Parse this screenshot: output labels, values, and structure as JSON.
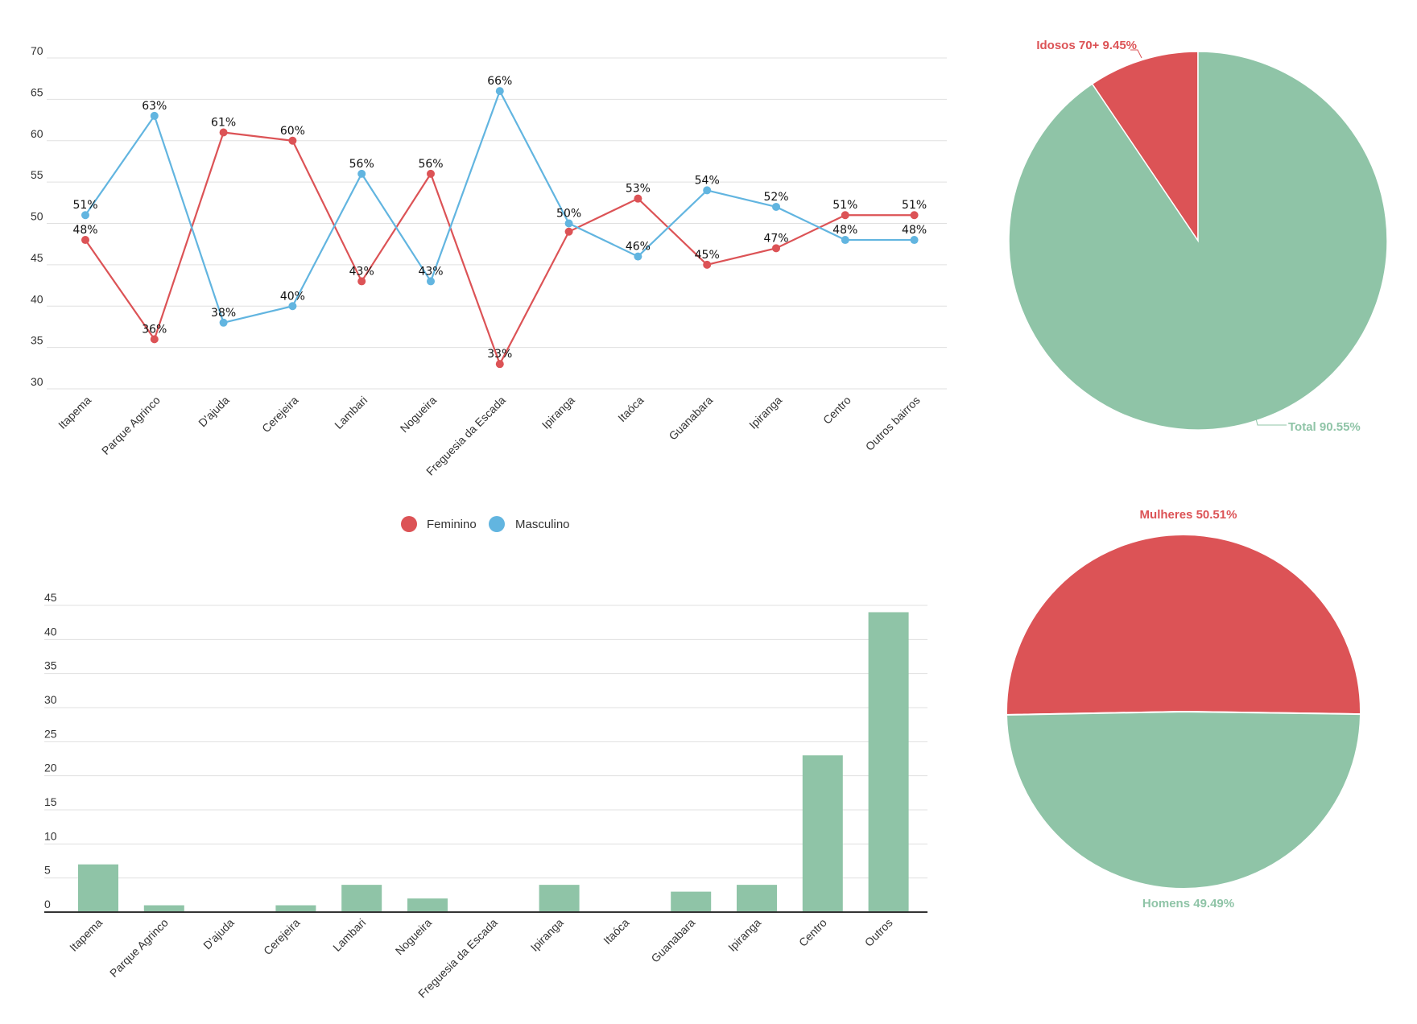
{
  "chart_data": [
    {
      "type": "line",
      "categories": [
        "Itapema",
        "Parque Agrinco",
        "D'ajuda",
        "Cerejeira",
        "Lambari",
        "Nogueira",
        "Freguesia da Escada",
        "Ipiranga",
        "Itaóca",
        "Guanabara",
        "Ipiranga",
        "Centro",
        "Outros bairros"
      ],
      "series": [
        {
          "name": "Feminino",
          "color": "#dc5356",
          "values": [
            48,
            36,
            61,
            60,
            43,
            56,
            33,
            49,
            53,
            45,
            47,
            51,
            51
          ],
          "labels": [
            "48%",
            "36%",
            "61%",
            "60%",
            "43%",
            "56%",
            "33%",
            "",
            "53%",
            "45%",
            "47%",
            "51%",
            "51%"
          ]
        },
        {
          "name": "Masculino",
          "color": "#62b5e0",
          "values": [
            51,
            63,
            38,
            40,
            56,
            43,
            66,
            50,
            46,
            54,
            52,
            48,
            48
          ],
          "labels": [
            "51%",
            "63%",
            "38%",
            "40%",
            "56%",
            "43%",
            "66%",
            "50%",
            "46%",
            "54%",
            "52%",
            "48%",
            "48%"
          ]
        }
      ],
      "ylim": [
        30,
        70
      ],
      "yticks": [
        "30",
        "35",
        "40",
        "45",
        "50",
        "55",
        "60",
        "65",
        "70"
      ],
      "grid": true,
      "legend": "bottom"
    },
    {
      "type": "pie",
      "slices": [
        {
          "label": "Idosos 70+ 9.45%",
          "value": 9.45,
          "color": "#dc5356"
        },
        {
          "label": "Total 90.55%",
          "value": 90.55,
          "color": "#8fc4a7"
        }
      ]
    },
    {
      "type": "bar",
      "categories": [
        "Itapema",
        "Parque Agrinco",
        "D'ajuda",
        "Cerejeira",
        "Lambari",
        "Nogueira",
        "Freguesia da Escada",
        "Ipiranga",
        "Itaóca",
        "Guanabara",
        "Ipiranga",
        "Centro",
        "Outros"
      ],
      "values": [
        7,
        1,
        0,
        1,
        4,
        2,
        0,
        4,
        0,
        3,
        4,
        23,
        44
      ],
      "color": "#8fc4a7",
      "ylim": [
        0,
        45
      ],
      "yticks": [
        "0",
        "5",
        "10",
        "15",
        "20",
        "25",
        "30",
        "35",
        "40",
        "45"
      ],
      "grid": true
    },
    {
      "type": "pie",
      "slices": [
        {
          "label": "Mulheres 50.51%",
          "value": 50.51,
          "color": "#dc5356"
        },
        {
          "label": "Homens 49.49%",
          "value": 49.49,
          "color": "#8fc4a7"
        }
      ]
    }
  ]
}
